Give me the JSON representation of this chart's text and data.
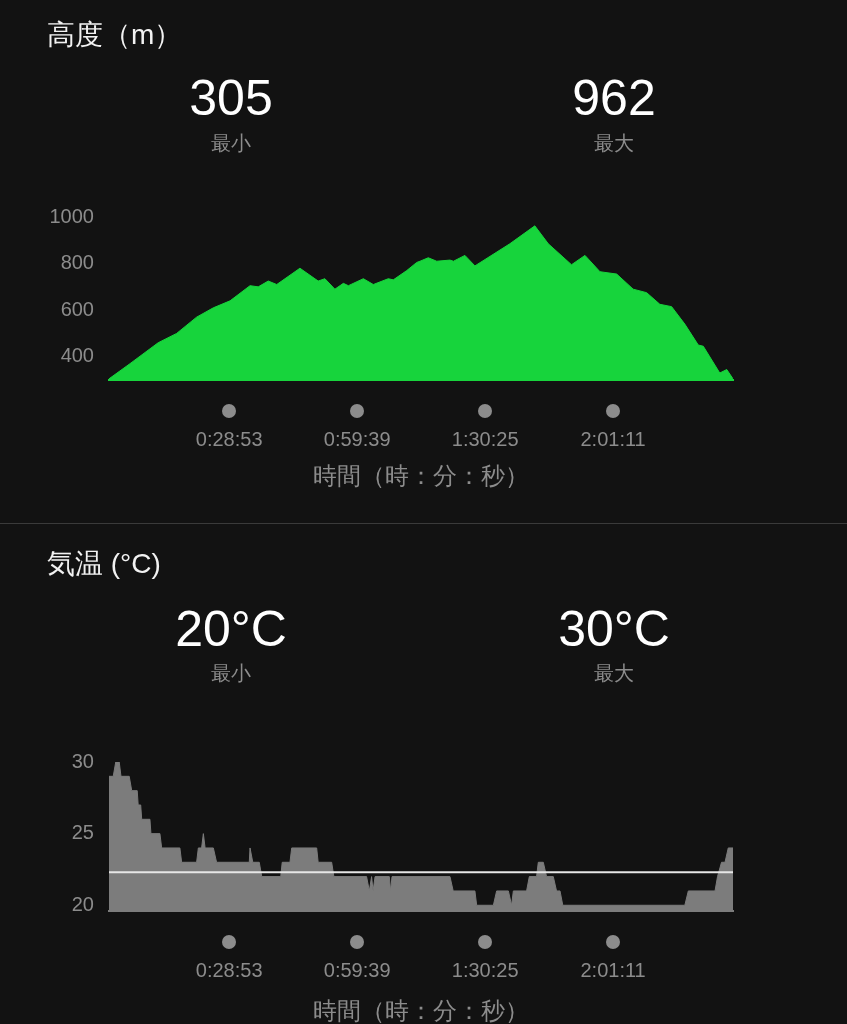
{
  "chart_data": [
    {
      "type": "area",
      "title": "高度（m）",
      "xlabel": "時間（時：分：秒）",
      "annotations": [
        "305",
        "最小",
        "962",
        "最大"
      ],
      "xlim": [
        0,
        2.5
      ],
      "xticks": [
        {
          "value": 0.48139,
          "label": "0:28:53"
        },
        {
          "value": 0.99417,
          "label": "0:59:39"
        },
        {
          "value": 1.50694,
          "label": "1:30:25"
        },
        {
          "value": 2.01972,
          "label": "2:01:11"
        }
      ],
      "ylim": [
        300,
        1000
      ],
      "yticks": [
        400,
        600,
        800,
        1000
      ],
      "series": [
        {
          "color": "#17d43c",
          "x": [
            0,
            0.084,
            0.197,
            0.271,
            0.351,
            0.418,
            0.485,
            0.565,
            0.598,
            0.638,
            0.672,
            0.765,
            0.838,
            0.865,
            0.905,
            0.939,
            0.959,
            1.019,
            1.059,
            1.119,
            1.139,
            1.193,
            1.233,
            1.246,
            1.279,
            1.313,
            1.366,
            1.38,
            1.426,
            1.466,
            1.606,
            1.706,
            1.76,
            1.853,
            1.907,
            1.967,
            2.034,
            2.1,
            2.154,
            2.207,
            2.254,
            2.307,
            2.361,
            2.381,
            2.447,
            2.475,
            2.5
          ],
          "values": [
            305,
            370,
            460,
            500,
            570,
            610,
            640,
            705,
            700,
            725,
            710,
            780,
            725,
            735,
            690,
            715,
            705,
            735,
            710,
            735,
            730,
            770,
            805,
            810,
            825,
            810,
            815,
            810,
            835,
            790,
            885,
            962,
            885,
            795,
            835,
            765,
            755,
            690,
            675,
            625,
            615,
            540,
            450,
            445,
            330,
            345,
            305
          ]
        }
      ]
    },
    {
      "type": "area",
      "title": "気温 (°C)",
      "xlabel": "時間（時：分：秒）",
      "annotations": [
        "20°C",
        "最小",
        "30°C",
        "最大"
      ],
      "xlim": [
        0,
        2.5
      ],
      "xticks": [
        {
          "value": 0.48139,
          "label": "0:28:53"
        },
        {
          "value": 0.99417,
          "label": "0:59:39"
        },
        {
          "value": 1.50694,
          "label": "1:30:25"
        },
        {
          "value": 2.01972,
          "label": "2:01:11"
        }
      ],
      "ylim": [
        19.6,
        30
      ],
      "yticks": [
        20,
        25,
        30
      ],
      "ref_lines": [
        {
          "axis": "y",
          "value": 22.3,
          "color": "#e6e6e6"
        }
      ],
      "series": [
        {
          "color": "#7c7c7c",
          "x": [
            0,
            0.017,
            0.027,
            0.041,
            0.048,
            0.081,
            0.091,
            0.113,
            0.117,
            0.127,
            0.131,
            0.164,
            0.168,
            0.204,
            0.211,
            0.284,
            0.291,
            0.351,
            0.358,
            0.371,
            0.378,
            0.385,
            0.418,
            0.431,
            0.562,
            0.565,
            0.576,
            0.602,
            0.612,
            0.688,
            0.694,
            0.725,
            0.732,
            0.832,
            0.838,
            0.892,
            0.901,
            1.032,
            1.043,
            1.052,
            1.058,
            1.066,
            1.123,
            1.128,
            1.134,
            1.366,
            1.379,
            1.466,
            1.473,
            1.54,
            1.553,
            1.6,
            1.613,
            1.62,
            1.673,
            1.684,
            1.713,
            1.72,
            1.74,
            1.753,
            1.78,
            1.793,
            1.807,
            1.818,
            2.307,
            2.321,
            2.428,
            2.438,
            2.454,
            2.468,
            2.481,
            2.5
          ],
          "values": [
            29,
            29,
            30,
            30,
            29,
            29,
            28,
            28,
            27,
            27,
            26,
            26,
            25,
            25,
            24,
            24,
            23,
            23,
            24,
            24,
            25,
            24,
            24,
            23,
            23,
            24,
            23,
            23,
            22,
            22,
            23,
            23,
            24,
            24,
            23,
            23,
            22,
            22,
            21,
            22,
            21,
            22,
            22,
            21,
            22,
            22,
            21,
            21,
            20,
            20,
            21,
            21,
            20,
            21,
            21,
            22,
            22,
            23,
            23,
            22,
            22,
            21,
            21,
            20,
            20,
            21,
            21,
            22,
            23,
            23,
            24,
            24
          ]
        }
      ]
    }
  ]
}
